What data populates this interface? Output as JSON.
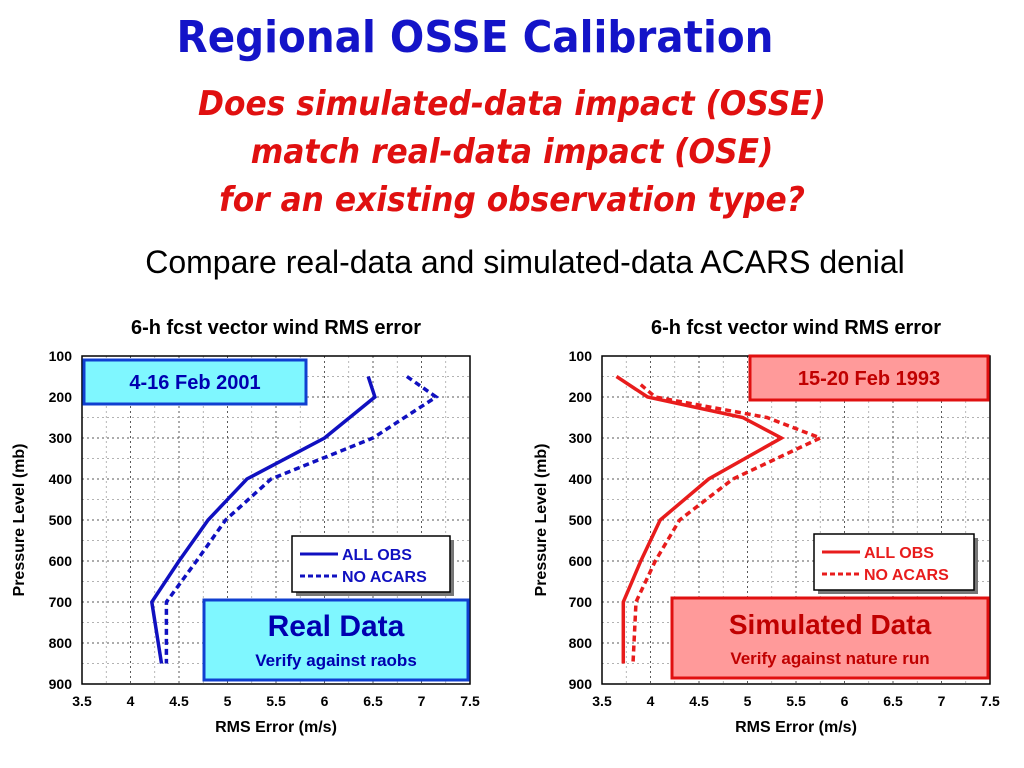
{
  "slide": {
    "title": "Regional OSSE Calibration",
    "question_lines": [
      "Does simulated-data impact (OSSE)",
      "match real-data impact (OSE)",
      "for an existing observation type?"
    ],
    "subtitle": "Compare real-data and simulated-data ACARS denial"
  },
  "colors": {
    "title": "#1414c8",
    "question": "#e01010",
    "blue_series": "#1010c0",
    "red_series": "#e81c1c",
    "left_date_fill": "#7ff7ff",
    "left_date_border": "#1040d0",
    "right_date_fill": "#ff9a9a",
    "right_date_border": "#e01010",
    "left_badge_fill": "#7ff7ff",
    "right_badge_fill": "#ff9a9a"
  },
  "chart_data": [
    {
      "type": "line",
      "title": "6-h fcst vector wind RMS error",
      "xlabel": "RMS Error (m/s)",
      "ylabel": "Pressure Level (mb)",
      "xlim": [
        3.5,
        7.5
      ],
      "ylim": [
        900,
        100
      ],
      "y_inverted": true,
      "grid": true,
      "x_ticks": [
        "3.5",
        "4",
        "4.5",
        "5",
        "5.5",
        "6",
        "6.5",
        "7",
        "7.5"
      ],
      "y_ticks": [
        "100",
        "200",
        "300",
        "400",
        "500",
        "600",
        "700",
        "800",
        "900"
      ],
      "date_label": "4-16 Feb 2001",
      "badge_title": "Real Data",
      "badge_subtitle": "Verify against raobs",
      "legend_position": "right",
      "series": [
        {
          "name": "ALL OBS",
          "style": "solid",
          "color": "#1010c0",
          "points": [
            [
              6.45,
              150
            ],
            [
              6.52,
              200
            ],
            [
              6.0,
              300
            ],
            [
              5.2,
              400
            ],
            [
              4.8,
              500
            ],
            [
              4.5,
              600
            ],
            [
              4.22,
              700
            ],
            [
              4.32,
              850
            ]
          ]
        },
        {
          "name": "NO ACARS",
          "style": "dashed",
          "color": "#1010c0",
          "points": [
            [
              6.85,
              150
            ],
            [
              7.15,
              200
            ],
            [
              6.5,
              300
            ],
            [
              5.45,
              400
            ],
            [
              4.98,
              500
            ],
            [
              4.68,
              600
            ],
            [
              4.37,
              700
            ],
            [
              4.37,
              850
            ]
          ]
        }
      ]
    },
    {
      "type": "line",
      "title": "6-h fcst vector wind RMS error",
      "xlabel": "RMS Error (m/s)",
      "ylabel": "Pressure Level (mb)",
      "xlim": [
        3.5,
        7.5
      ],
      "ylim": [
        900,
        100
      ],
      "y_inverted": true,
      "grid": true,
      "x_ticks": [
        "3.5",
        "4",
        "4.5",
        "5",
        "5.5",
        "6",
        "6.5",
        "7",
        "7.5"
      ],
      "y_ticks": [
        "100",
        "200",
        "300",
        "400",
        "500",
        "600",
        "700",
        "800",
        "900"
      ],
      "date_label": "15-20 Feb 1993",
      "badge_title": "Simulated Data",
      "badge_subtitle": "Verify against nature run",
      "legend_position": "right",
      "series": [
        {
          "name": "ALL OBS",
          "style": "solid",
          "color": "#e81c1c",
          "points": [
            [
              3.65,
              150
            ],
            [
              3.97,
              200
            ],
            [
              4.95,
              250
            ],
            [
              5.35,
              300
            ],
            [
              4.6,
              400
            ],
            [
              4.1,
              500
            ],
            [
              3.9,
              600
            ],
            [
              3.72,
              700
            ],
            [
              3.72,
              850
            ]
          ]
        },
        {
          "name": "NO ACARS",
          "style": "dashed",
          "color": "#e81c1c",
          "points": [
            [
              3.9,
              170
            ],
            [
              4.05,
              200
            ],
            [
              5.2,
              250
            ],
            [
              5.75,
              300
            ],
            [
              4.85,
              400
            ],
            [
              4.3,
              500
            ],
            [
              4.05,
              600
            ],
            [
              3.85,
              700
            ],
            [
              3.82,
              850
            ]
          ]
        }
      ]
    }
  ]
}
